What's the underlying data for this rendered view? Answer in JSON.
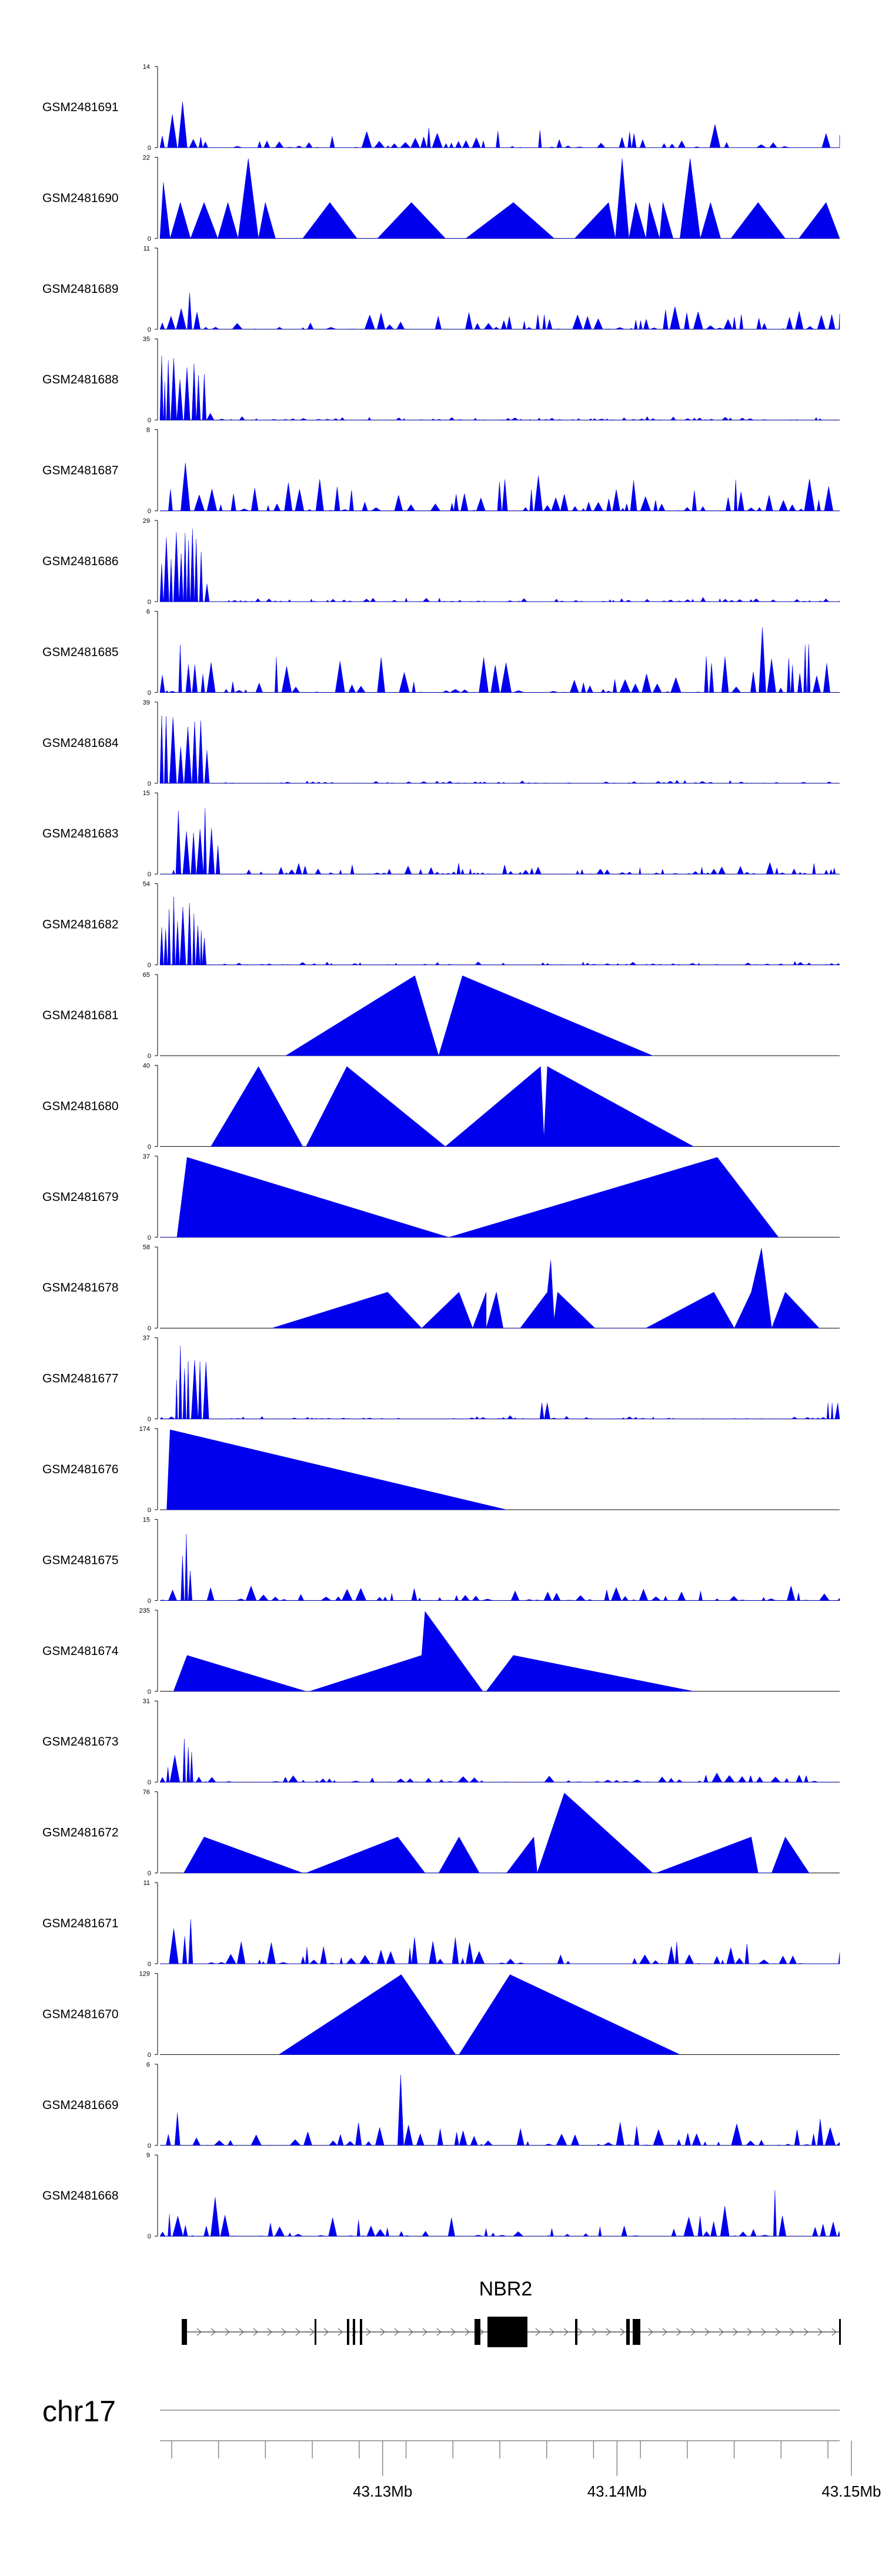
{
  "chart_data": {
    "type": "area",
    "fill_color": "#0000ee",
    "chromosome": "chr17",
    "gene": {
      "name": "NBR2"
    },
    "axis": {
      "range_mb": [
        43.1205,
        43.1495
      ],
      "ticks_mb": [
        43.13,
        43.14,
        43.15
      ],
      "tick_labels": [
        "43.13Mb",
        "43.14Mb",
        "43.15Mb"
      ]
    },
    "tracks": [
      {
        "name": "GSM2481691",
        "ymax": "14",
        "style": "dense",
        "seed": 11,
        "base": 0.22,
        "peaks": [
          [
            0.01,
            0.7
          ],
          [
            0.03,
            1.0
          ],
          [
            0.08,
            0.3
          ],
          [
            0.39,
            0.4
          ],
          [
            0.81,
            0.4
          ]
        ]
      },
      {
        "name": "GSM2481690",
        "ymax": "22",
        "style": "sparse",
        "pts": [
          [
            0,
            0
          ],
          [
            0.005,
            0.7
          ],
          [
            0.015,
            0
          ],
          [
            0.03,
            0.45
          ],
          [
            0.045,
            0
          ],
          [
            0.065,
            0.45
          ],
          [
            0.085,
            0
          ],
          [
            0.1,
            0.45
          ],
          [
            0.115,
            0
          ],
          [
            0.13,
            1.0
          ],
          [
            0.145,
            0
          ],
          [
            0.155,
            0.45
          ],
          [
            0.17,
            0
          ],
          [
            0.21,
            0
          ],
          [
            0.25,
            0.45
          ],
          [
            0.29,
            0
          ],
          [
            0.32,
            0
          ],
          [
            0.37,
            0.45
          ],
          [
            0.42,
            0
          ],
          [
            0.45,
            0
          ],
          [
            0.52,
            0.45
          ],
          [
            0.58,
            0
          ],
          [
            0.61,
            0
          ],
          [
            0.66,
            0.45
          ],
          [
            0.67,
            0
          ],
          [
            0.68,
            1.0
          ],
          [
            0.69,
            0
          ],
          [
            0.7,
            0.45
          ],
          [
            0.715,
            0
          ],
          [
            0.72,
            0.45
          ],
          [
            0.735,
            0
          ],
          [
            0.74,
            0.45
          ],
          [
            0.755,
            0
          ],
          [
            0.765,
            0
          ],
          [
            0.78,
            1.0
          ],
          [
            0.795,
            0
          ],
          [
            0.81,
            0.45
          ],
          [
            0.825,
            0
          ],
          [
            0.84,
            0
          ],
          [
            0.88,
            0.45
          ],
          [
            0.92,
            0
          ],
          [
            0.94,
            0
          ],
          [
            0.98,
            0.45
          ],
          [
            1.0,
            0
          ]
        ]
      },
      {
        "name": "GSM2481689",
        "ymax": "11",
        "style": "dense",
        "seed": 23,
        "base": 0.25,
        "peaks": [
          [
            0.02,
            0.55
          ],
          [
            0.035,
            1.0
          ],
          [
            0.045,
            0.4
          ],
          [
            0.75,
            0.3
          ],
          [
            0.93,
            0.35
          ]
        ]
      },
      {
        "name": "GSM2481688",
        "ymax": "35",
        "style": "hump",
        "seed": 37,
        "base": 0.06,
        "hump": [
          0.0,
          0.07,
          1.0
        ]
      },
      {
        "name": "GSM2481687",
        "ymax": "8",
        "style": "dense",
        "seed": 41,
        "base": 0.4,
        "peaks": [
          [
            0.02,
            0.9
          ],
          [
            0.035,
            1.0
          ],
          [
            0.06,
            0.6
          ],
          [
            0.55,
            0.6
          ],
          [
            0.9,
            0.55
          ]
        ]
      },
      {
        "name": "GSM2481686",
        "ymax": "29",
        "style": "hump",
        "seed": 53,
        "base": 0.07,
        "hump": [
          0.0,
          0.07,
          0.95
        ]
      },
      {
        "name": "GSM2481685",
        "ymax": "6",
        "style": "dense",
        "seed": 67,
        "base": 0.45,
        "peaks": [
          [
            0.03,
            0.8
          ],
          [
            0.16,
            0.8
          ],
          [
            0.82,
            1.0
          ],
          [
            0.88,
            0.9
          ],
          [
            0.95,
            0.8
          ]
        ]
      },
      {
        "name": "GSM2481684",
        "ymax": "39",
        "style": "hump",
        "seed": 71,
        "base": 0.05,
        "hump": [
          0.0,
          0.07,
          1.0
        ]
      },
      {
        "name": "GSM2481683",
        "ymax": "15",
        "style": "hump",
        "seed": 83,
        "base": 0.2,
        "hump": [
          0.02,
          0.07,
          0.95
        ]
      },
      {
        "name": "GSM2481682",
        "ymax": "54",
        "style": "hump",
        "seed": 97,
        "base": 0.05,
        "hump": [
          0.0,
          0.07,
          0.95
        ]
      },
      {
        "name": "GSM2481681",
        "ymax": "65",
        "style": "sparse",
        "pts": [
          [
            0.185,
            0
          ],
          [
            0.375,
            1.0
          ],
          [
            0.41,
            0
          ],
          [
            0.445,
            1.0
          ],
          [
            0.725,
            0
          ]
        ]
      },
      {
        "name": "GSM2481680",
        "ymax": "40",
        "style": "sparse",
        "pts": [
          [
            0.075,
            0
          ],
          [
            0.145,
            1.0
          ],
          [
            0.21,
            0
          ],
          [
            0.215,
            0
          ],
          [
            0.275,
            1.0
          ],
          [
            0.42,
            0
          ],
          [
            0.56,
            1.0
          ],
          [
            0.565,
            0.1
          ],
          [
            0.57,
            1.0
          ],
          [
            0.785,
            0
          ]
        ]
      },
      {
        "name": "GSM2481679",
        "ymax": "37",
        "style": "sparse",
        "pts": [
          [
            0.0,
            0
          ],
          [
            0.025,
            0
          ],
          [
            0.04,
            1.0
          ],
          [
            0.425,
            0
          ],
          [
            0.82,
            1.0
          ],
          [
            0.91,
            0
          ]
        ]
      },
      {
        "name": "GSM2481678",
        "ymax": "58",
        "style": "sparse",
        "pts": [
          [
            0.165,
            0
          ],
          [
            0.335,
            0.45
          ],
          [
            0.385,
            0
          ],
          [
            0.44,
            0.45
          ],
          [
            0.46,
            0
          ],
          [
            0.46,
            0
          ],
          [
            0.48,
            0.45
          ],
          [
            0.48,
            0
          ],
          [
            0.495,
            0.45
          ],
          [
            0.505,
            0
          ],
          [
            0.53,
            0
          ],
          [
            0.57,
            0.45
          ],
          [
            0.575,
            0.85
          ],
          [
            0.58,
            0.1
          ],
          [
            0.585,
            0.45
          ],
          [
            0.64,
            0
          ],
          [
            0.65,
            0
          ],
          [
            0.715,
            0
          ],
          [
            0.815,
            0.45
          ],
          [
            0.845,
            0
          ],
          [
            0.87,
            0.45
          ],
          [
            0.885,
            1.0
          ],
          [
            0.9,
            0
          ],
          [
            0.92,
            0.45
          ],
          [
            0.97,
            0
          ]
        ]
      },
      {
        "name": "GSM2481677",
        "ymax": "37",
        "style": "hump",
        "seed": 101,
        "base": 0.05,
        "hump": [
          0.02,
          0.05,
          1.0
        ],
        "peaks": [
          [
            0.56,
            0.2
          ],
          [
            0.99,
            0.2
          ]
        ]
      },
      {
        "name": "GSM2481676",
        "ymax": "174",
        "style": "sparse",
        "pts": [
          [
            0.01,
            0
          ],
          [
            0.015,
            1.0
          ],
          [
            0.51,
            0
          ]
        ]
      },
      {
        "name": "GSM2481675",
        "ymax": "15",
        "style": "dense",
        "seed": 113,
        "base": 0.2,
        "peaks": [
          [
            0.02,
            0.4
          ],
          [
            0.035,
            1.0
          ],
          [
            0.045,
            0.5
          ],
          [
            0.98,
            0.3
          ]
        ]
      },
      {
        "name": "GSM2481674",
        "ymax": "235",
        "style": "sparse",
        "pts": [
          [
            0.02,
            0
          ],
          [
            0.04,
            0.45
          ],
          [
            0.215,
            0
          ],
          [
            0.22,
            0
          ],
          [
            0.385,
            0.45
          ],
          [
            0.39,
            1.0
          ],
          [
            0.475,
            0
          ],
          [
            0.48,
            0
          ],
          [
            0.52,
            0.45
          ],
          [
            0.785,
            0
          ]
        ]
      },
      {
        "name": "GSM2481673",
        "ymax": "31",
        "style": "dense",
        "seed": 127,
        "base": 0.1,
        "peaks": [
          [
            0.02,
            0.6
          ],
          [
            0.03,
            1.0
          ],
          [
            0.04,
            0.6
          ],
          [
            0.82,
            0.3
          ]
        ]
      },
      {
        "name": "GSM2481672",
        "ymax": "76",
        "style": "sparse",
        "pts": [
          [
            0.035,
            0
          ],
          [
            0.065,
            0.45
          ],
          [
            0.21,
            0
          ],
          [
            0.215,
            0
          ],
          [
            0.35,
            0.45
          ],
          [
            0.39,
            0
          ],
          [
            0.41,
            0
          ],
          [
            0.44,
            0.45
          ],
          [
            0.47,
            0
          ],
          [
            0.51,
            0
          ],
          [
            0.55,
            0.45
          ],
          [
            0.555,
            0
          ],
          [
            0.595,
            1.0
          ],
          [
            0.725,
            0
          ],
          [
            0.73,
            0
          ],
          [
            0.87,
            0.45
          ],
          [
            0.88,
            0
          ],
          [
            0.9,
            0
          ],
          [
            0.92,
            0.45
          ],
          [
            0.955,
            0
          ]
        ]
      },
      {
        "name": "GSM2481671",
        "ymax": "11",
        "style": "dense",
        "seed": 139,
        "base": 0.35,
        "peaks": [
          [
            0.015,
            0.7
          ],
          [
            0.04,
            0.65
          ],
          [
            0.955,
            1.0
          ]
        ]
      },
      {
        "name": "GSM2481670",
        "ymax": "129",
        "style": "sparse",
        "pts": [
          [
            0.175,
            0
          ],
          [
            0.355,
            1.0
          ],
          [
            0.435,
            0
          ],
          [
            0.44,
            0
          ],
          [
            0.515,
            1.0
          ],
          [
            0.765,
            0
          ]
        ]
      },
      {
        "name": "GSM2481669",
        "ymax": "6",
        "style": "dense",
        "seed": 151,
        "base": 0.32,
        "peaks": [
          [
            0.02,
            0.7
          ],
          [
            0.03,
            0.9
          ],
          [
            0.35,
            0.9
          ],
          [
            0.97,
            0.6
          ]
        ]
      },
      {
        "name": "GSM2481668",
        "ymax": "9",
        "style": "dense",
        "seed": 163,
        "base": 0.3,
        "peaks": [
          [
            0.015,
            0.35
          ],
          [
            0.08,
            1.0
          ],
          [
            0.82,
            0.6
          ],
          [
            0.9,
            0.7
          ]
        ]
      }
    ]
  }
}
